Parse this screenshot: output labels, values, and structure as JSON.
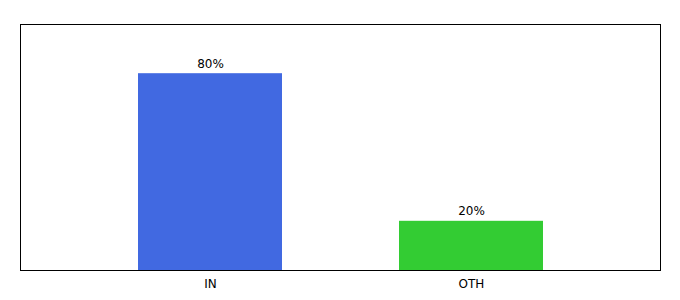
{
  "chart_data": {
    "type": "bar",
    "categories": [
      "IN",
      "OTH"
    ],
    "values": [
      80,
      20
    ],
    "value_labels": [
      "80%",
      "20%"
    ],
    "colors": [
      "#4169e1",
      "#33cc33"
    ],
    "ylim": [
      0,
      100
    ],
    "yticks": [],
    "data_labels": true,
    "tick_labels": "x"
  }
}
